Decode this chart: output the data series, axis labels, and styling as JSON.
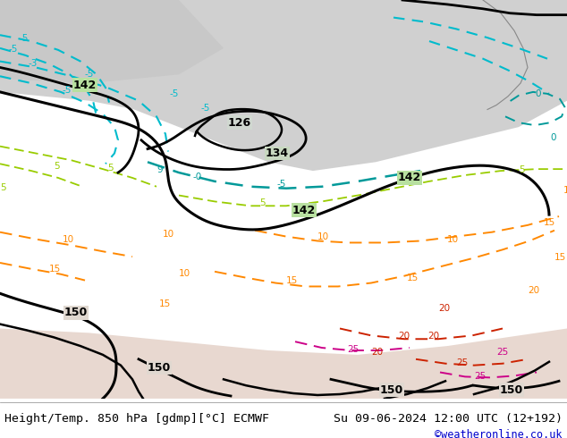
{
  "title_left": "Height/Temp. 850 hPa [gdmp][°C] ECMWF",
  "title_right": "Su 09-06-2024 12:00 UTC (12+192)",
  "credit": "©weatheronline.co.uk",
  "bg_color_top": "#e8e8e8",
  "bg_color_main": "#aaddaa",
  "bg_color_land": "#99cc77",
  "text_color": "#000000",
  "credit_color": "#0000cc",
  "footer_bg": "#ffffff",
  "figsize": [
    6.34,
    4.9
  ],
  "dpi": 100
}
